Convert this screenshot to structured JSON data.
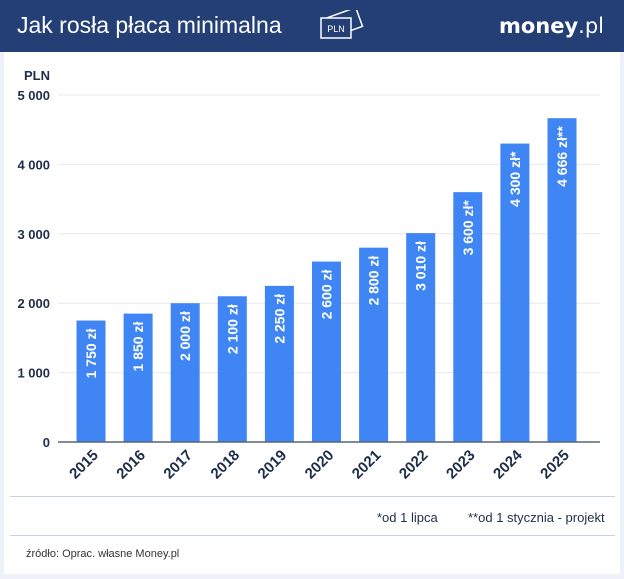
{
  "header": {
    "title": "Jak rosła płaca minimalna",
    "icon": "banknote-pln-icon",
    "icon_text": "PLN",
    "logo_bold": "money",
    "logo_rest": ".pl"
  },
  "chart_data": {
    "type": "bar",
    "ylabel": "PLN",
    "ylim": [
      0,
      5000
    ],
    "yticks": [
      0,
      1000,
      2000,
      3000,
      4000,
      5000
    ],
    "ytick_labels": [
      "0",
      "1 000",
      "2 000",
      "3 000",
      "4 000",
      "5 000"
    ],
    "categories": [
      "2015",
      "2016",
      "2017",
      "2018",
      "2019",
      "2020",
      "2021",
      "2022",
      "2023",
      "2024",
      "2025"
    ],
    "values": [
      1750,
      1850,
      2000,
      2100,
      2250,
      2600,
      2800,
      3010,
      3600,
      4300,
      4666
    ],
    "data_labels": [
      "1 750 zł",
      "1 850 zł",
      "2 000 zł",
      "2 100 zł",
      "2 250 zł",
      "2 600 zł",
      "2 800 zł",
      "3 010 zł",
      "3 600 zł*",
      "4 300 zł*",
      "4 666 zł**"
    ],
    "grid": true,
    "bar_color": "#3f86f4"
  },
  "notes": {
    "note1": "*od 1 lipca",
    "note2": "**od 1 stycznia - projekt"
  },
  "source": "źródło: Oprac. własne Money.pl"
}
